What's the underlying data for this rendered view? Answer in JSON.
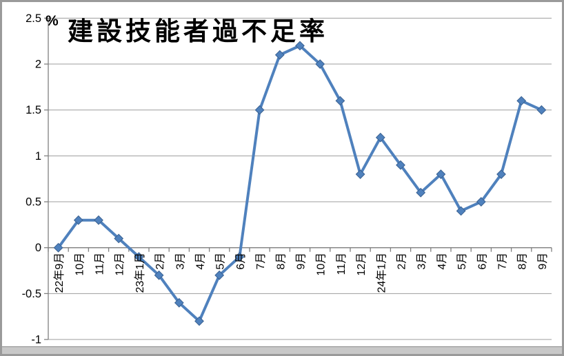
{
  "window": {
    "background": "#ffffff",
    "frame_color": "#9a9a9a",
    "bottom_bar_color": "#c8c8c8"
  },
  "chart_data": {
    "type": "line",
    "title": "建設技能者過不足率",
    "unit_label": "%",
    "categories": [
      "22年9月",
      "10月",
      "11月",
      "12月",
      "23年1月",
      "2月",
      "3月",
      "4月",
      "5月",
      "6月",
      "7月",
      "8月",
      "9月",
      "10月",
      "11月",
      "12月",
      "24年1月",
      "2月",
      "3月",
      "4月",
      "5月",
      "6月",
      "7月",
      "8月",
      "9月"
    ],
    "values": [
      0.0,
      0.3,
      0.3,
      0.1,
      -0.1,
      -0.3,
      -0.6,
      -0.8,
      -0.3,
      -0.1,
      1.5,
      2.1,
      2.2,
      2.0,
      1.6,
      0.8,
      1.2,
      0.9,
      0.6,
      0.8,
      0.4,
      0.5,
      0.8,
      1.6,
      1.5
    ],
    "ylim": [
      -1,
      2.5
    ],
    "ytick_step": 0.5,
    "ytick_labels": [
      "2.5",
      "2",
      "1.5",
      "1",
      "0.5",
      "0",
      "-0.5",
      "-1"
    ],
    "grid": true,
    "legend": "none",
    "x_label_rotation": -90,
    "series_color": "#4F81BD",
    "marker_edge_color": "#3A6191",
    "marker_shape": "diamond",
    "gridline_color": "#9c9c9c",
    "axis_color": "#808080",
    "text_color": "#000000"
  }
}
